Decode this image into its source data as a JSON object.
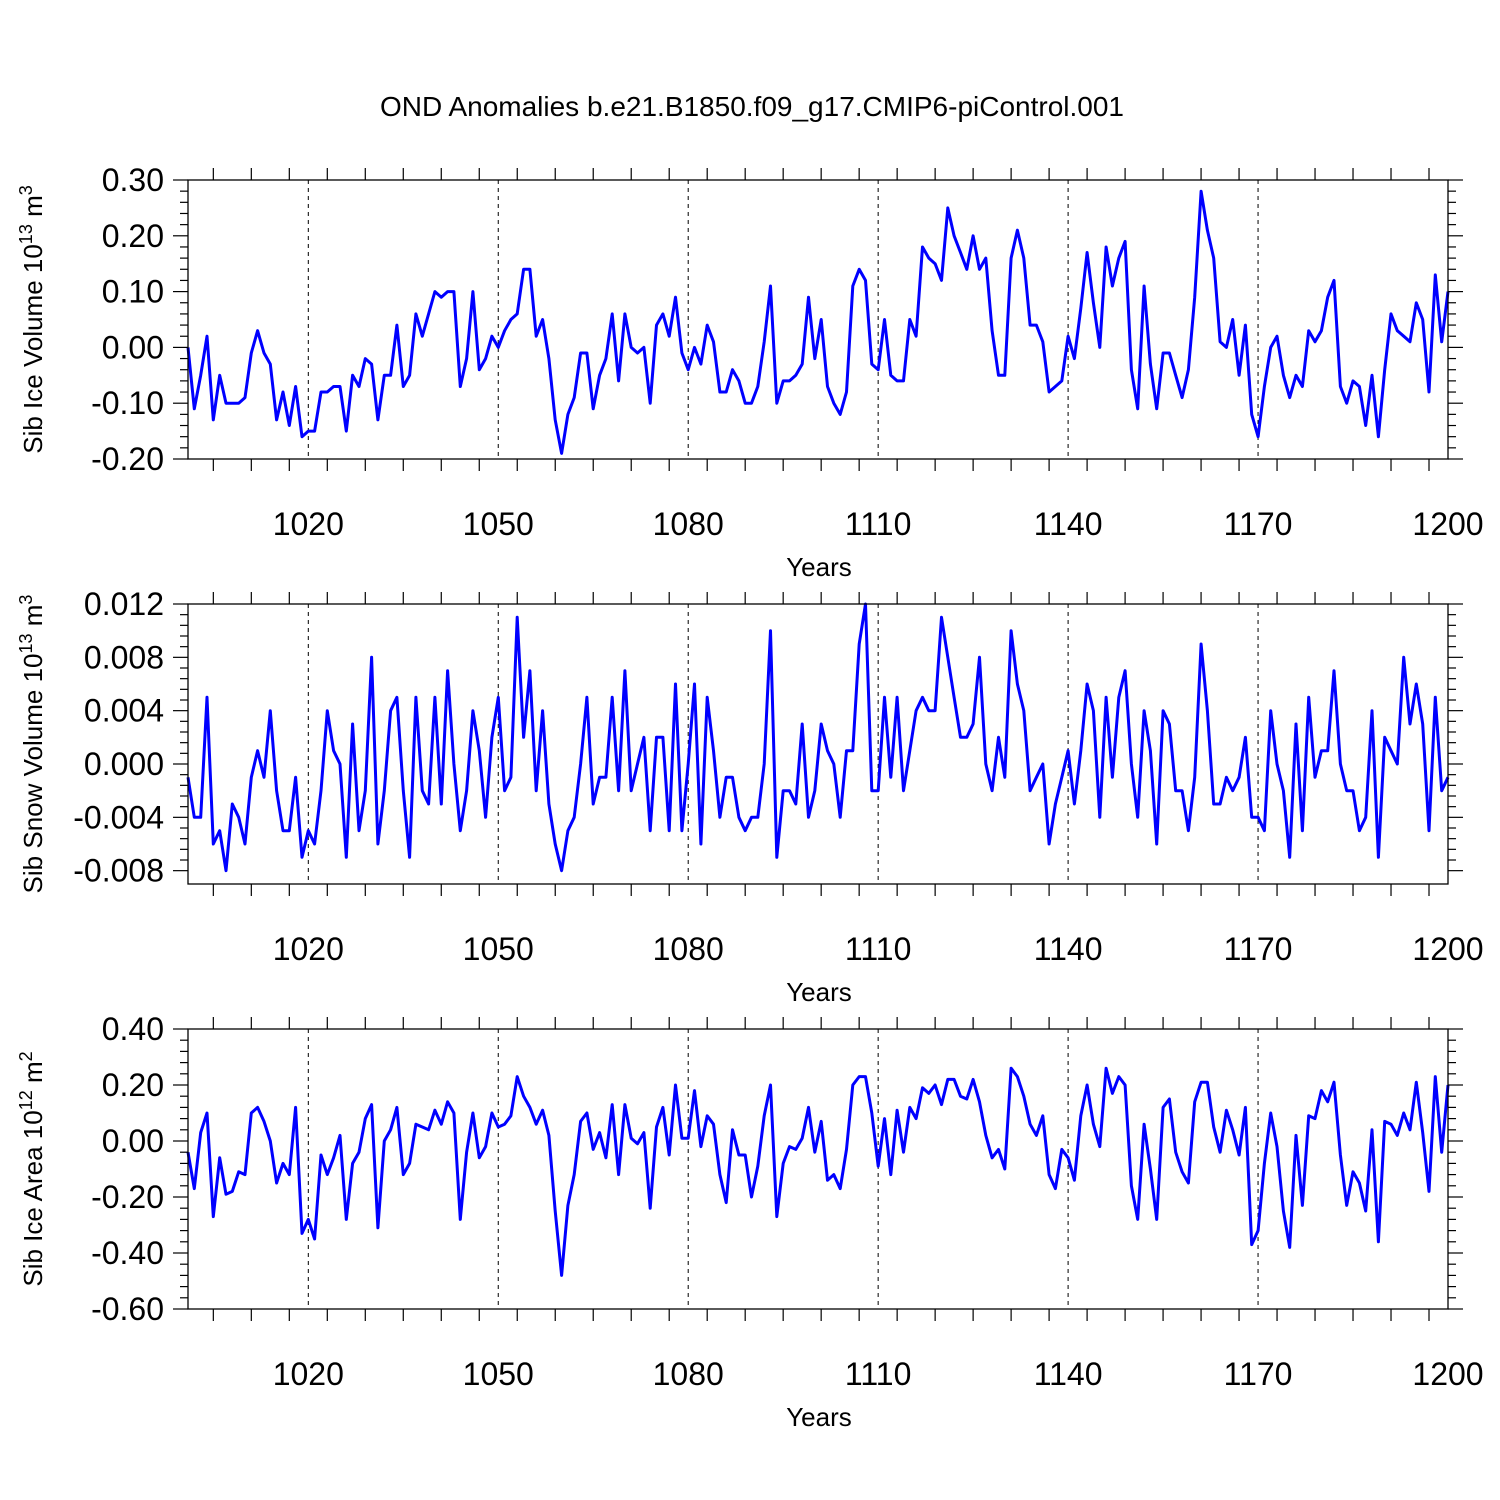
{
  "chart_data": {
    "title": "OND Anomalies b.e21.B1850.f09_g17.CMIP6-piControl.001",
    "type": "line",
    "line_color": "#0000ff",
    "x_start_year": 1001,
    "panels": [
      {
        "id": "ice_volume",
        "ylabel": "Sib Ice Volume 10",
        "ylabel_exp1": "13",
        "ylabel_mid": " m",
        "ylabel_exp2": "3",
        "xlabel": "Years",
        "xlim": [
          1001,
          1200
        ],
        "ylim": [
          -0.2,
          0.3
        ],
        "yticks": [
          -0.2,
          -0.1,
          0.0,
          0.1,
          0.2,
          0.3
        ],
        "ytick_labels": [
          "-0.20",
          "-0.10",
          "0.00",
          "0.10",
          "0.20",
          "0.30"
        ],
        "xticks": [
          1020,
          1050,
          1080,
          1110,
          1140,
          1170,
          1200
        ],
        "xtick_labels": [
          "1020",
          "1050",
          "1080",
          "1110",
          "1140",
          "1170",
          "1200"
        ],
        "values": [
          0.0,
          -0.11,
          -0.05,
          0.02,
          -0.13,
          -0.05,
          -0.1,
          -0.1,
          -0.1,
          -0.09,
          -0.01,
          0.03,
          -0.01,
          -0.03,
          -0.13,
          -0.08,
          -0.14,
          -0.07,
          -0.16,
          -0.15,
          -0.15,
          -0.08,
          -0.08,
          -0.07,
          -0.07,
          -0.15,
          -0.05,
          -0.07,
          -0.02,
          -0.03,
          -0.13,
          -0.05,
          -0.05,
          0.04,
          -0.07,
          -0.05,
          0.06,
          0.02,
          0.06,
          0.1,
          0.09,
          0.1,
          0.1,
          -0.07,
          -0.02,
          0.1,
          -0.04,
          -0.02,
          0.02,
          0.0,
          0.03,
          0.05,
          0.06,
          0.14,
          0.14,
          0.02,
          0.05,
          -0.02,
          -0.13,
          -0.19,
          -0.12,
          -0.09,
          -0.01,
          -0.01,
          -0.11,
          -0.05,
          -0.02,
          0.06,
          -0.06,
          0.06,
          0.0,
          -0.01,
          0.0,
          -0.1,
          0.04,
          0.06,
          0.02,
          0.09,
          -0.01,
          -0.04,
          0.0,
          -0.03,
          0.04,
          0.01,
          -0.08,
          -0.08,
          -0.04,
          -0.06,
          -0.1,
          -0.1,
          -0.07,
          0.01,
          0.11,
          -0.1,
          -0.06,
          -0.06,
          -0.05,
          -0.03,
          0.09,
          -0.02,
          0.05,
          -0.07,
          -0.1,
          -0.12,
          -0.08,
          0.11,
          0.14,
          0.12,
          -0.03,
          -0.04,
          0.05,
          -0.05,
          -0.06,
          -0.06,
          0.05,
          0.02,
          0.18,
          0.16,
          0.15,
          0.12,
          0.25,
          0.2,
          0.17,
          0.14,
          0.2,
          0.14,
          0.16,
          0.03,
          -0.05,
          -0.05,
          0.16,
          0.21,
          0.16,
          0.04,
          0.04,
          0.01,
          -0.08,
          -0.07,
          -0.06,
          0.02,
          -0.02,
          0.07,
          0.17,
          0.08,
          0.0,
          0.18,
          0.11,
          0.16,
          0.19,
          -0.04,
          -0.11,
          0.11,
          -0.03,
          -0.11,
          -0.01,
          -0.01,
          -0.05,
          -0.09,
          -0.04,
          0.09,
          0.28,
          0.21,
          0.16,
          0.01,
          0.0,
          0.05,
          -0.05,
          0.04,
          -0.12,
          -0.16,
          -0.07,
          0.0,
          0.02,
          -0.05,
          -0.09,
          -0.05,
          -0.07,
          0.03,
          0.01,
          0.03,
          0.09,
          0.12,
          -0.07,
          -0.1,
          -0.06,
          -0.07,
          -0.14,
          -0.05,
          -0.16,
          -0.04,
          0.06,
          0.03,
          0.02,
          0.01,
          0.08,
          0.05,
          -0.08,
          0.13,
          0.01,
          0.1
        ]
      },
      {
        "id": "snow_volume",
        "ylabel": "Sib Snow Volume 10",
        "ylabel_exp1": "13",
        "ylabel_mid": " m",
        "ylabel_exp2": "3",
        "xlabel": "Years",
        "xlim": [
          1001,
          1200
        ],
        "ylim": [
          -0.009,
          0.012
        ],
        "yticks": [
          -0.008,
          -0.004,
          0.0,
          0.004,
          0.008,
          0.012
        ],
        "ytick_labels": [
          "-0.008",
          "-0.004",
          "0.000",
          "0.004",
          "0.008",
          "0.012"
        ],
        "xticks": [
          1020,
          1050,
          1080,
          1110,
          1140,
          1170,
          1200
        ],
        "xtick_labels": [
          "1020",
          "1050",
          "1080",
          "1110",
          "1140",
          "1170",
          "1200"
        ],
        "values": [
          -0.001,
          -0.004,
          -0.004,
          0.005,
          -0.006,
          -0.005,
          -0.008,
          -0.003,
          -0.004,
          -0.006,
          -0.001,
          0.001,
          -0.001,
          0.004,
          -0.002,
          -0.005,
          -0.005,
          -0.001,
          -0.007,
          -0.005,
          -0.006,
          -0.002,
          0.004,
          0.001,
          0.0,
          -0.007,
          0.003,
          -0.005,
          -0.002,
          0.008,
          -0.006,
          -0.002,
          0.004,
          0.005,
          -0.002,
          -0.007,
          0.005,
          -0.002,
          -0.003,
          0.005,
          -0.003,
          0.007,
          0.0,
          -0.005,
          -0.002,
          0.004,
          0.001,
          -0.004,
          0.002,
          0.005,
          -0.002,
          -0.001,
          0.011,
          0.002,
          0.007,
          -0.002,
          0.004,
          -0.003,
          -0.006,
          -0.008,
          -0.005,
          -0.004,
          0.0,
          0.005,
          -0.003,
          -0.001,
          -0.001,
          0.005,
          -0.002,
          0.007,
          -0.002,
          0.0,
          0.002,
          -0.005,
          0.002,
          0.002,
          -0.005,
          0.006,
          -0.005,
          0.0,
          0.006,
          -0.006,
          0.005,
          0.001,
          -0.004,
          -0.001,
          -0.001,
          -0.004,
          -0.005,
          -0.004,
          -0.004,
          0.0,
          0.01,
          -0.007,
          -0.002,
          -0.002,
          -0.003,
          0.003,
          -0.004,
          -0.002,
          0.003,
          0.001,
          0.0,
          -0.004,
          0.001,
          0.001,
          0.009,
          0.012,
          -0.002,
          -0.002,
          0.005,
          -0.001,
          0.005,
          -0.002,
          0.001,
          0.004,
          0.005,
          0.004,
          0.004,
          0.011,
          0.008,
          0.005,
          0.002,
          0.002,
          0.003,
          0.008,
          0.0,
          -0.002,
          0.002,
          -0.001,
          0.01,
          0.006,
          0.004,
          -0.002,
          -0.001,
          0.0,
          -0.006,
          -0.003,
          -0.001,
          0.001,
          -0.003,
          0.001,
          0.006,
          0.004,
          -0.004,
          0.005,
          -0.001,
          0.005,
          0.007,
          0.0,
          -0.004,
          0.004,
          0.001,
          -0.006,
          0.004,
          0.003,
          -0.002,
          -0.002,
          -0.005,
          -0.001,
          0.009,
          0.004,
          -0.003,
          -0.003,
          -0.001,
          -0.002,
          -0.001,
          0.002,
          -0.004,
          -0.004,
          -0.005,
          0.004,
          0.0,
          -0.002,
          -0.007,
          0.003,
          -0.005,
          0.005,
          -0.001,
          0.001,
          0.001,
          0.007,
          0.0,
          -0.002,
          -0.002,
          -0.005,
          -0.004,
          0.004,
          -0.007,
          0.002,
          0.001,
          0.0,
          0.008,
          0.003,
          0.006,
          0.003,
          -0.005,
          0.005,
          -0.002,
          -0.001
        ]
      },
      {
        "id": "ice_area",
        "ylabel": "Sib Ice Area 10",
        "ylabel_exp1": "12",
        "ylabel_mid": " m",
        "ylabel_exp2": "2",
        "xlabel": "Years",
        "xlim": [
          1001,
          1200
        ],
        "ylim": [
          -0.6,
          0.4
        ],
        "yticks": [
          -0.6,
          -0.4,
          -0.2,
          0.0,
          0.2,
          0.4
        ],
        "ytick_labels": [
          "-0.60",
          "-0.40",
          "-0.20",
          "0.00",
          "0.20",
          "0.40"
        ],
        "xticks": [
          1020,
          1050,
          1080,
          1110,
          1140,
          1170,
          1200
        ],
        "xtick_labels": [
          "1020",
          "1050",
          "1080",
          "1110",
          "1140",
          "1170",
          "1200"
        ],
        "values": [
          -0.04,
          -0.17,
          0.03,
          0.1,
          -0.27,
          -0.06,
          -0.19,
          -0.18,
          -0.11,
          -0.12,
          0.1,
          0.12,
          0.07,
          0.0,
          -0.15,
          -0.08,
          -0.12,
          0.12,
          -0.33,
          -0.28,
          -0.35,
          -0.05,
          -0.12,
          -0.06,
          0.02,
          -0.28,
          -0.08,
          -0.04,
          0.08,
          0.13,
          -0.31,
          0.0,
          0.04,
          0.12,
          -0.12,
          -0.08,
          0.06,
          0.05,
          0.04,
          0.11,
          0.06,
          0.14,
          0.1,
          -0.28,
          -0.04,
          0.1,
          -0.06,
          -0.02,
          0.1,
          0.05,
          0.06,
          0.09,
          0.23,
          0.16,
          0.12,
          0.06,
          0.11,
          0.02,
          -0.25,
          -0.48,
          -0.23,
          -0.12,
          0.07,
          0.1,
          -0.03,
          0.03,
          -0.06,
          0.13,
          -0.12,
          0.13,
          0.01,
          -0.01,
          0.03,
          -0.24,
          0.05,
          0.12,
          -0.05,
          0.2,
          0.01,
          0.01,
          0.18,
          -0.02,
          0.09,
          0.06,
          -0.12,
          -0.22,
          0.04,
          -0.05,
          -0.05,
          -0.2,
          -0.09,
          0.09,
          0.2,
          -0.27,
          -0.08,
          -0.02,
          -0.03,
          0.01,
          0.12,
          -0.04,
          0.07,
          -0.14,
          -0.12,
          -0.17,
          -0.03,
          0.2,
          0.23,
          0.23,
          0.1,
          -0.09,
          0.08,
          -0.12,
          0.11,
          -0.04,
          0.12,
          0.08,
          0.19,
          0.17,
          0.2,
          0.13,
          0.22,
          0.22,
          0.16,
          0.15,
          0.22,
          0.14,
          0.02,
          -0.06,
          -0.03,
          -0.1,
          0.26,
          0.23,
          0.16,
          0.06,
          0.02,
          0.09,
          -0.12,
          -0.17,
          -0.03,
          -0.06,
          -0.14,
          0.09,
          0.2,
          0.06,
          -0.02,
          0.26,
          0.17,
          0.23,
          0.2,
          -0.16,
          -0.28,
          0.06,
          -0.1,
          -0.28,
          0.12,
          0.15,
          -0.04,
          -0.11,
          -0.15,
          0.14,
          0.21,
          0.21,
          0.05,
          -0.04,
          0.11,
          0.04,
          -0.05,
          0.12,
          -0.37,
          -0.32,
          -0.08,
          0.1,
          -0.02,
          -0.25,
          -0.38,
          0.02,
          -0.23,
          0.09,
          0.08,
          0.18,
          0.14,
          0.21,
          -0.05,
          -0.23,
          -0.11,
          -0.15,
          -0.25,
          0.04,
          -0.36,
          0.07,
          0.06,
          0.02,
          0.1,
          0.04,
          0.21,
          0.03,
          -0.18,
          0.23,
          -0.04,
          0.2
        ]
      }
    ]
  }
}
